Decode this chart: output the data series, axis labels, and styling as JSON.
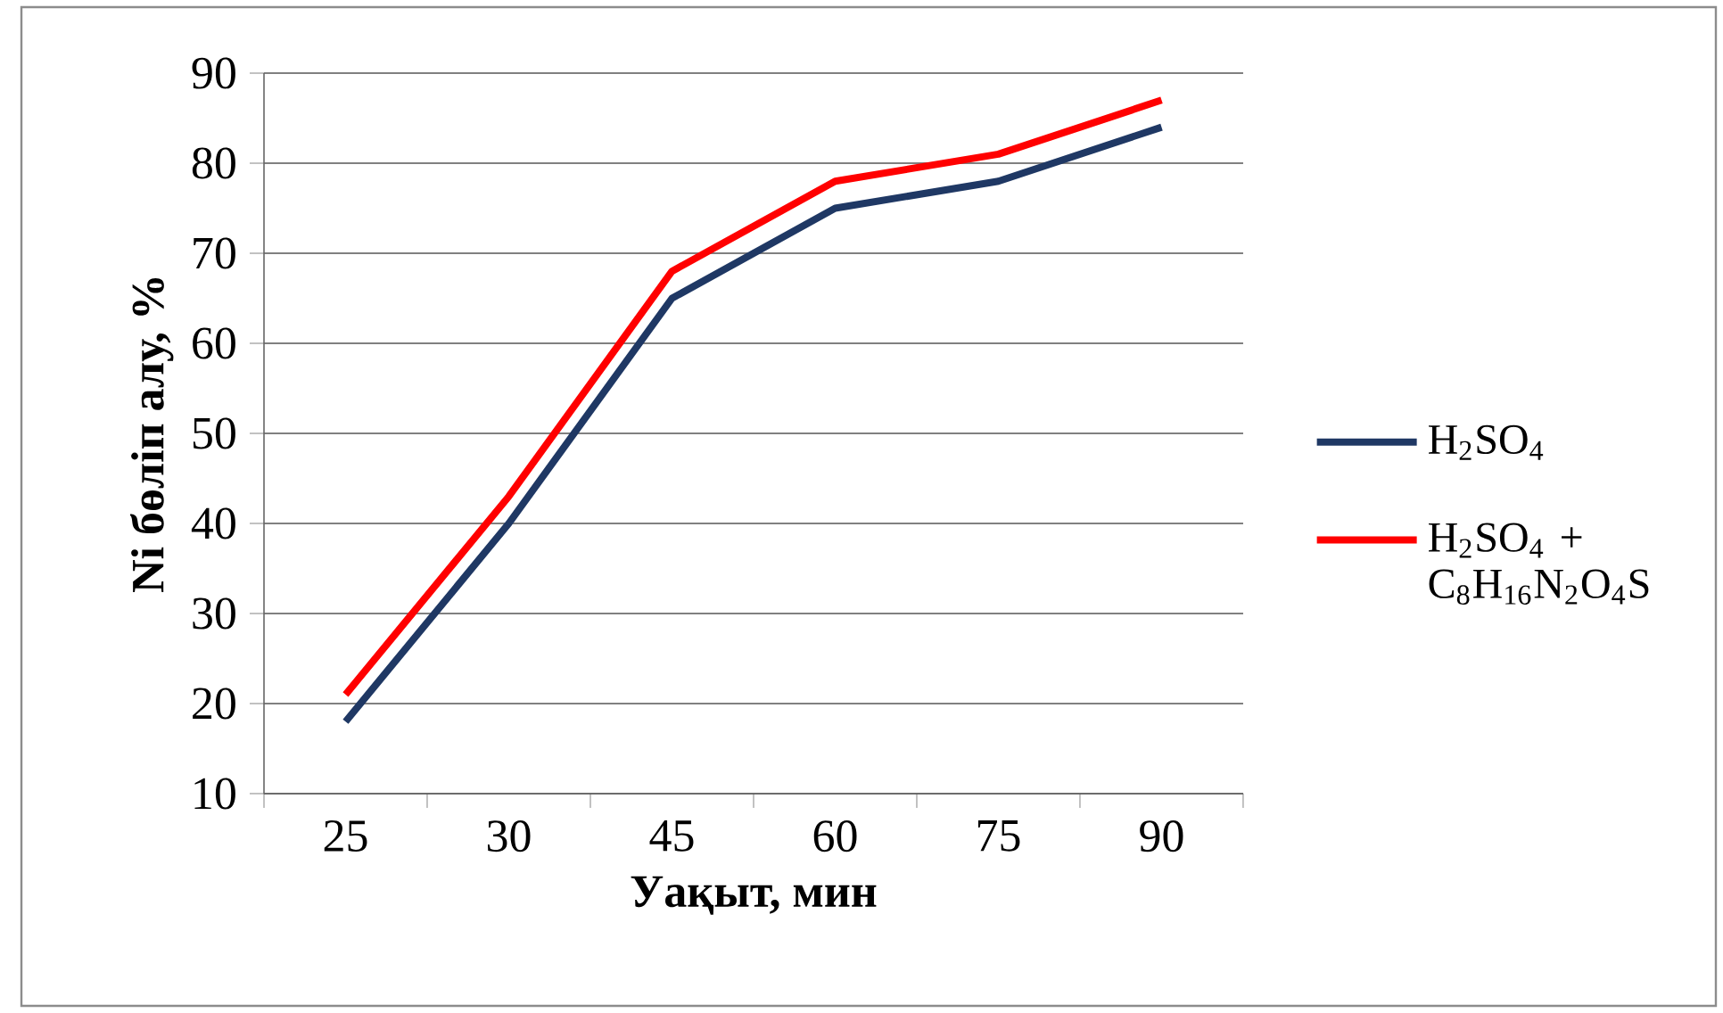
{
  "chart_data": {
    "type": "line",
    "xlabel": "Уақыт, мин",
    "ylabel": "Ni бөліп алу, %",
    "categories": [
      "25",
      "30",
      "45",
      "60",
      "75",
      "90"
    ],
    "series": [
      {
        "name": "H$_{2}$SO$_{4}$",
        "color": "#1f3864",
        "values": [
          18,
          40,
          65,
          75,
          78,
          84
        ]
      },
      {
        "name": "H$_{2}$SO$_{4}$ + C$_{8}$H$_{16}$N$_{2}$O$_{4}$S",
        "color": "#ff0000",
        "values": [
          21,
          43,
          68,
          78,
          81,
          87
        ]
      }
    ],
    "ylim": [
      10,
      90
    ],
    "yticks": [
      10,
      20,
      30,
      40,
      50,
      60,
      70,
      80,
      90
    ],
    "grid": "y",
    "legend": "right",
    "marker": "none",
    "line_style": "solid"
  }
}
